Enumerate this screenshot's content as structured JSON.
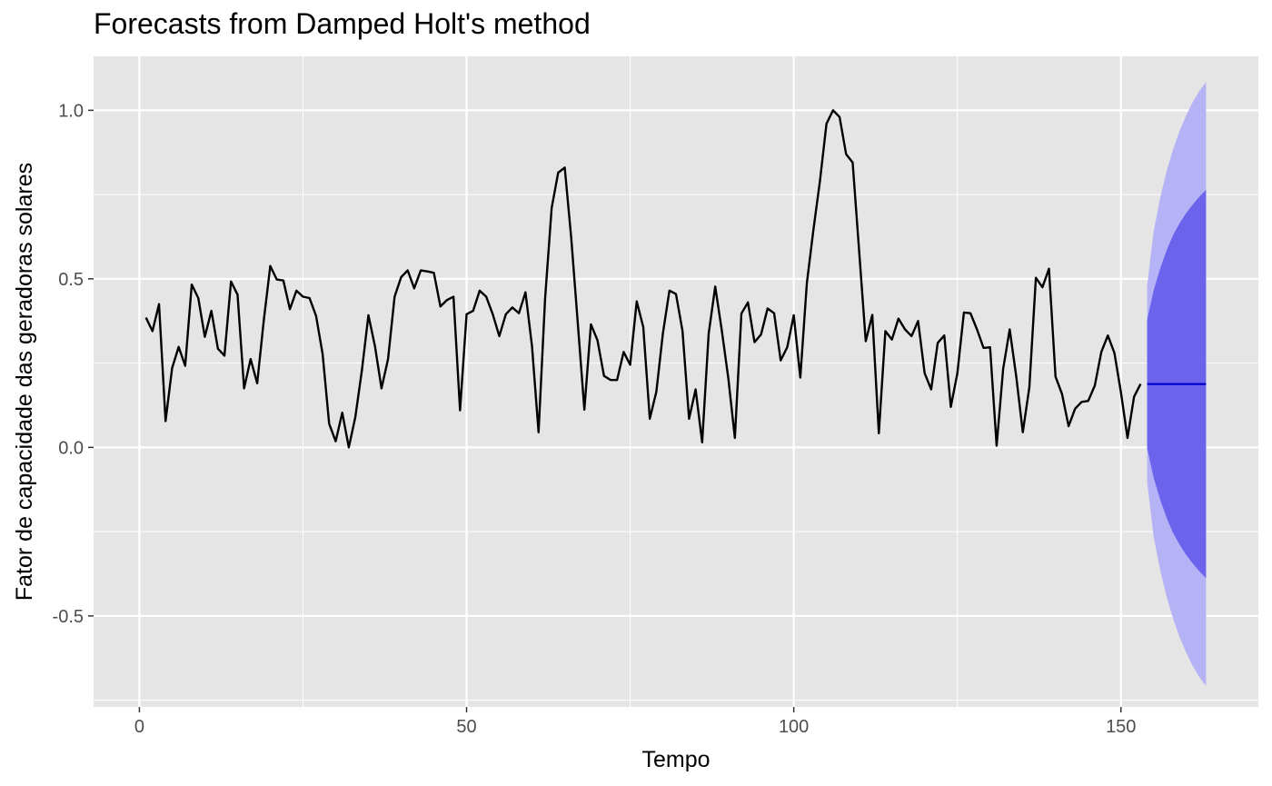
{
  "chart_data": {
    "type": "line",
    "title": "Forecasts from Damped Holt's method",
    "xlabel": "Tempo",
    "ylabel": "Fator de capacidade das geradoras solares",
    "xlim": [
      -7,
      171
    ],
    "ylim": [
      -0.77,
      1.16
    ],
    "x_ticks": [
      0,
      50,
      100,
      150
    ],
    "y_ticks": [
      -0.5,
      0.0,
      0.5,
      1.0
    ],
    "x_tick_labels": [
      "0",
      "50",
      "100",
      "150"
    ],
    "y_tick_labels": [
      "-0.5",
      "0.0",
      "0.5",
      "1.0"
    ],
    "grid": true,
    "legend": "none",
    "colors": {
      "panel_background": "#e5e5e5",
      "grid": "#ffffff",
      "series": "#000000",
      "forecast_line": "#0000cc",
      "band_80": "#6b63eb",
      "band_95": "#b5b3f5"
    },
    "series": [
      {
        "x_start": 1,
        "x_step": 1,
        "values": [
          0.385,
          0.345,
          0.425,
          0.078,
          0.235,
          0.298,
          0.242,
          0.483,
          0.443,
          0.328,
          0.405,
          0.293,
          0.272,
          0.492,
          0.453,
          0.175,
          0.262,
          0.19,
          0.375,
          0.538,
          0.498,
          0.495,
          0.41,
          0.465,
          0.447,
          0.443,
          0.39,
          0.277,
          0.07,
          0.018,
          0.103,
          0.0,
          0.09,
          0.228,
          0.392,
          0.3,
          0.175,
          0.262,
          0.447,
          0.505,
          0.525,
          0.472,
          0.525,
          0.522,
          0.518,
          0.418,
          0.437,
          0.447,
          0.11,
          0.395,
          0.405,
          0.465,
          0.447,
          0.395,
          0.33,
          0.395,
          0.415,
          0.398,
          0.46,
          0.3,
          0.045,
          0.442,
          0.71,
          0.815,
          0.83,
          0.62,
          0.367,
          0.112,
          0.365,
          0.318,
          0.212,
          0.2,
          0.2,
          0.283,
          0.245,
          0.433,
          0.357,
          0.085,
          0.165,
          0.338,
          0.465,
          0.455,
          0.345,
          0.085,
          0.172,
          0.015,
          0.338,
          0.477,
          0.347,
          0.205,
          0.028,
          0.397,
          0.43,
          0.312,
          0.335,
          0.412,
          0.398,
          0.258,
          0.297,
          0.392,
          0.207,
          0.487,
          0.645,
          0.79,
          0.96,
          1.0,
          0.98,
          0.87,
          0.845,
          0.58,
          0.315,
          0.393,
          0.042,
          0.345,
          0.32,
          0.382,
          0.35,
          0.33,
          0.375,
          0.22,
          0.172,
          0.31,
          0.332,
          0.12,
          0.22,
          0.4,
          0.398,
          0.35,
          0.295,
          0.297,
          0.005,
          0.233,
          0.35,
          0.21,
          0.045,
          0.178,
          0.503,
          0.475,
          0.53,
          0.21,
          0.158,
          0.063,
          0.115,
          0.135,
          0.138,
          0.183,
          0.283,
          0.332,
          0.28,
          0.163,
          0.028,
          0.15,
          0.188
        ]
      }
    ],
    "forecast": {
      "x": [
        154,
        155,
        156,
        157,
        158,
        159,
        160,
        161,
        162,
        163
      ],
      "mean": [
        0.188,
        0.188,
        0.188,
        0.188,
        0.188,
        0.188,
        0.188,
        0.188,
        0.188,
        0.188
      ],
      "lo80": [
        -0.002,
        -0.09,
        -0.155,
        -0.21,
        -0.255,
        -0.29,
        -0.32,
        -0.345,
        -0.368,
        -0.388
      ],
      "hi80": [
        0.378,
        0.466,
        0.531,
        0.586,
        0.631,
        0.666,
        0.696,
        0.721,
        0.744,
        0.764
      ],
      "lo95": [
        -0.103,
        -0.265,
        -0.365,
        -0.445,
        -0.51,
        -0.565,
        -0.61,
        -0.65,
        -0.682,
        -0.708
      ],
      "hi95": [
        0.479,
        0.641,
        0.741,
        0.821,
        0.886,
        0.941,
        0.986,
        1.026,
        1.058,
        1.084
      ]
    }
  }
}
